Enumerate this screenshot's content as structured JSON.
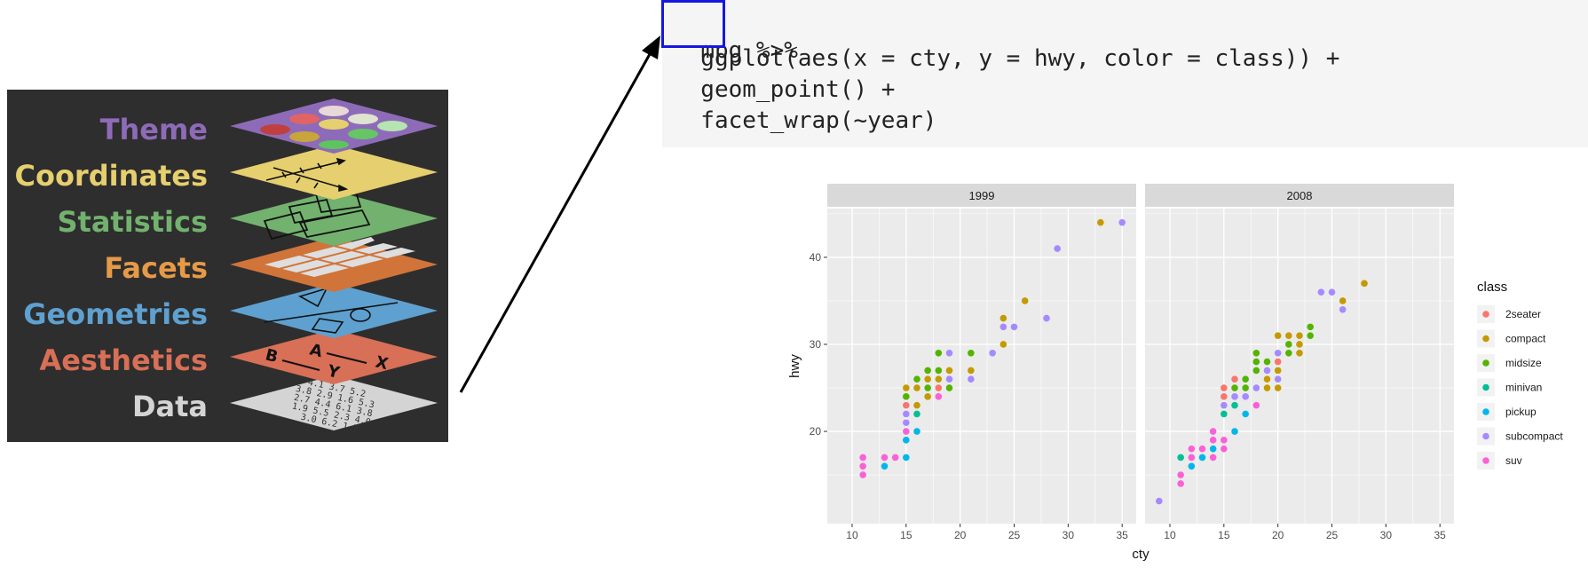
{
  "layers": [
    {
      "name": "Theme",
      "color": "#8e6bb8"
    },
    {
      "name": "Coordinates",
      "color": "#e6cf6e"
    },
    {
      "name": "Statistics",
      "color": "#72b26e"
    },
    {
      "name": "Facets",
      "color": "#e69a48"
    },
    {
      "name": "Geometries",
      "color": "#5ea1d0"
    },
    {
      "name": "Aesthetics",
      "color": "#d86f57"
    },
    {
      "name": "Data",
      "color": "#d4d4d4"
    }
  ],
  "aesthetics_letters": [
    "A",
    "X",
    "B",
    "Y"
  ],
  "data_numbers": [
    "4.1 3.7 5.2",
    "3.8 2.9 1.6 5.3",
    "2.7 4.4 6.1 3.8",
    "1.9 5.5 2.3 4.0",
    "3.0 6.2 1.7"
  ],
  "code": {
    "token_mpg": "mpg",
    "pipe": " %>%",
    "line2": "  ggplot(aes(x = cty, y = hwy, color = class)) +",
    "line3": "  geom_point() +",
    "line4": "  facet_wrap(~year)"
  },
  "colors": {
    "highlight": "#1616e0",
    "panel_bg": "#ebebeb",
    "strip_bg": "#d9d9d9",
    "grid": "#ffffff"
  },
  "chart_data": {
    "type": "scatter",
    "xlabel": "cty",
    "ylabel": "hwy",
    "xlim": [
      7.7,
      36.3
    ],
    "ylim": [
      9.4,
      45.6
    ],
    "x_ticks": [
      10,
      15,
      20,
      25,
      30,
      35
    ],
    "y_ticks": [
      20,
      30,
      40
    ],
    "facets": [
      "1999",
      "2008"
    ],
    "legend": {
      "title": "class",
      "position": "right",
      "entries": [
        {
          "name": "2seater",
          "color": "#F8766D"
        },
        {
          "name": "compact",
          "color": "#C49A00"
        },
        {
          "name": "midsize",
          "color": "#53B400"
        },
        {
          "name": "minivan",
          "color": "#00C094"
        },
        {
          "name": "pickup",
          "color": "#00B6EB"
        },
        {
          "name": "subcompact",
          "color": "#A58AFF"
        },
        {
          "name": "suv",
          "color": "#FB61D7"
        }
      ]
    },
    "points": [
      {
        "facet": 0,
        "x": 11,
        "y": 17,
        "class": "suv"
      },
      {
        "facet": 0,
        "x": 11,
        "y": 16,
        "class": "suv"
      },
      {
        "facet": 0,
        "x": 11,
        "y": 15,
        "class": "suv"
      },
      {
        "facet": 0,
        "x": 13,
        "y": 17,
        "class": "suv"
      },
      {
        "facet": 0,
        "x": 13,
        "y": 16,
        "class": "pickup"
      },
      {
        "facet": 0,
        "x": 14,
        "y": 17,
        "class": "suv"
      },
      {
        "facet": 0,
        "x": 15,
        "y": 17,
        "class": "pickup"
      },
      {
        "facet": 0,
        "x": 15,
        "y": 19,
        "class": "pickup"
      },
      {
        "facet": 0,
        "x": 15,
        "y": 20,
        "class": "suv"
      },
      {
        "facet": 0,
        "x": 15,
        "y": 21,
        "class": "subcompact"
      },
      {
        "facet": 0,
        "x": 15,
        "y": 22,
        "class": "subcompact"
      },
      {
        "facet": 0,
        "x": 15,
        "y": 23,
        "class": "2seater"
      },
      {
        "facet": 0,
        "x": 15,
        "y": 24,
        "class": "midsize"
      },
      {
        "facet": 0,
        "x": 15,
        "y": 25,
        "class": "compact"
      },
      {
        "facet": 0,
        "x": 16,
        "y": 20,
        "class": "pickup"
      },
      {
        "facet": 0,
        "x": 16,
        "y": 22,
        "class": "minivan"
      },
      {
        "facet": 0,
        "x": 16,
        "y": 23,
        "class": "compact"
      },
      {
        "facet": 0,
        "x": 16,
        "y": 25,
        "class": "compact"
      },
      {
        "facet": 0,
        "x": 16,
        "y": 26,
        "class": "midsize"
      },
      {
        "facet": 0,
        "x": 17,
        "y": 24,
        "class": "compact"
      },
      {
        "facet": 0,
        "x": 17,
        "y": 25,
        "class": "midsize"
      },
      {
        "facet": 0,
        "x": 17,
        "y": 26,
        "class": "compact"
      },
      {
        "facet": 0,
        "x": 17,
        "y": 27,
        "class": "midsize"
      },
      {
        "facet": 0,
        "x": 18,
        "y": 24,
        "class": "suv"
      },
      {
        "facet": 0,
        "x": 18,
        "y": 25,
        "class": "2seater"
      },
      {
        "facet": 0,
        "x": 18,
        "y": 26,
        "class": "compact"
      },
      {
        "facet": 0,
        "x": 18,
        "y": 27,
        "class": "midsize"
      },
      {
        "facet": 0,
        "x": 18,
        "y": 29,
        "class": "midsize"
      },
      {
        "facet": 0,
        "x": 19,
        "y": 25,
        "class": "midsize"
      },
      {
        "facet": 0,
        "x": 19,
        "y": 26,
        "class": "subcompact"
      },
      {
        "facet": 0,
        "x": 19,
        "y": 27,
        "class": "compact"
      },
      {
        "facet": 0,
        "x": 19,
        "y": 29,
        "class": "subcompact"
      },
      {
        "facet": 0,
        "x": 21,
        "y": 26,
        "class": "subcompact"
      },
      {
        "facet": 0,
        "x": 21,
        "y": 27,
        "class": "compact"
      },
      {
        "facet": 0,
        "x": 21,
        "y": 29,
        "class": "midsize"
      },
      {
        "facet": 0,
        "x": 23,
        "y": 29,
        "class": "subcompact"
      },
      {
        "facet": 0,
        "x": 24,
        "y": 30,
        "class": "compact"
      },
      {
        "facet": 0,
        "x": 24,
        "y": 32,
        "class": "subcompact"
      },
      {
        "facet": 0,
        "x": 24,
        "y": 33,
        "class": "compact"
      },
      {
        "facet": 0,
        "x": 25,
        "y": 32,
        "class": "subcompact"
      },
      {
        "facet": 0,
        "x": 26,
        "y": 35,
        "class": "compact"
      },
      {
        "facet": 0,
        "x": 28,
        "y": 33,
        "class": "subcompact"
      },
      {
        "facet": 0,
        "x": 29,
        "y": 41,
        "class": "subcompact"
      },
      {
        "facet": 0,
        "x": 33,
        "y": 44,
        "class": "compact"
      },
      {
        "facet": 0,
        "x": 35,
        "y": 44,
        "class": "subcompact"
      },
      {
        "facet": 1,
        "x": 9,
        "y": 12,
        "class": "subcompact"
      },
      {
        "facet": 1,
        "x": 11,
        "y": 14,
        "class": "suv"
      },
      {
        "facet": 1,
        "x": 11,
        "y": 15,
        "class": "suv"
      },
      {
        "facet": 1,
        "x": 11,
        "y": 17,
        "class": "minivan"
      },
      {
        "facet": 1,
        "x": 12,
        "y": 16,
        "class": "pickup"
      },
      {
        "facet": 1,
        "x": 12,
        "y": 17,
        "class": "suv"
      },
      {
        "facet": 1,
        "x": 12,
        "y": 18,
        "class": "suv"
      },
      {
        "facet": 1,
        "x": 13,
        "y": 17,
        "class": "pickup"
      },
      {
        "facet": 1,
        "x": 13,
        "y": 18,
        "class": "suv"
      },
      {
        "facet": 1,
        "x": 14,
        "y": 17,
        "class": "suv"
      },
      {
        "facet": 1,
        "x": 14,
        "y": 18,
        "class": "pickup"
      },
      {
        "facet": 1,
        "x": 14,
        "y": 19,
        "class": "suv"
      },
      {
        "facet": 1,
        "x": 14,
        "y": 20,
        "class": "suv"
      },
      {
        "facet": 1,
        "x": 15,
        "y": 18,
        "class": "suv"
      },
      {
        "facet": 1,
        "x": 15,
        "y": 19,
        "class": "suv"
      },
      {
        "facet": 1,
        "x": 15,
        "y": 22,
        "class": "minivan"
      },
      {
        "facet": 1,
        "x": 15,
        "y": 23,
        "class": "subcompact"
      },
      {
        "facet": 1,
        "x": 15,
        "y": 24,
        "class": "2seater"
      },
      {
        "facet": 1,
        "x": 15,
        "y": 25,
        "class": "2seater"
      },
      {
        "facet": 1,
        "x": 16,
        "y": 20,
        "class": "pickup"
      },
      {
        "facet": 1,
        "x": 16,
        "y": 23,
        "class": "minivan"
      },
      {
        "facet": 1,
        "x": 16,
        "y": 24,
        "class": "subcompact"
      },
      {
        "facet": 1,
        "x": 16,
        "y": 25,
        "class": "midsize"
      },
      {
        "facet": 1,
        "x": 16,
        "y": 26,
        "class": "2seater"
      },
      {
        "facet": 1,
        "x": 17,
        "y": 22,
        "class": "pickup"
      },
      {
        "facet": 1,
        "x": 17,
        "y": 24,
        "class": "subcompact"
      },
      {
        "facet": 1,
        "x": 17,
        "y": 25,
        "class": "midsize"
      },
      {
        "facet": 1,
        "x": 17,
        "y": 26,
        "class": "midsize"
      },
      {
        "facet": 1,
        "x": 18,
        "y": 23,
        "class": "suv"
      },
      {
        "facet": 1,
        "x": 18,
        "y": 25,
        "class": "subcompact"
      },
      {
        "facet": 1,
        "x": 18,
        "y": 27,
        "class": "midsize"
      },
      {
        "facet": 1,
        "x": 18,
        "y": 28,
        "class": "midsize"
      },
      {
        "facet": 1,
        "x": 18,
        "y": 29,
        "class": "midsize"
      },
      {
        "facet": 1,
        "x": 19,
        "y": 25,
        "class": "compact"
      },
      {
        "facet": 1,
        "x": 19,
        "y": 26,
        "class": "compact"
      },
      {
        "facet": 1,
        "x": 19,
        "y": 27,
        "class": "subcompact"
      },
      {
        "facet": 1,
        "x": 19,
        "y": 28,
        "class": "midsize"
      },
      {
        "facet": 1,
        "x": 20,
        "y": 25,
        "class": "compact"
      },
      {
        "facet": 1,
        "x": 20,
        "y": 26,
        "class": "subcompact"
      },
      {
        "facet": 1,
        "x": 20,
        "y": 27,
        "class": "compact"
      },
      {
        "facet": 1,
        "x": 20,
        "y": 28,
        "class": "2seater"
      },
      {
        "facet": 1,
        "x": 20,
        "y": 29,
        "class": "subcompact"
      },
      {
        "facet": 1,
        "x": 20,
        "y": 31,
        "class": "compact"
      },
      {
        "facet": 1,
        "x": 21,
        "y": 29,
        "class": "midsize"
      },
      {
        "facet": 1,
        "x": 21,
        "y": 30,
        "class": "midsize"
      },
      {
        "facet": 1,
        "x": 21,
        "y": 31,
        "class": "compact"
      },
      {
        "facet": 1,
        "x": 22,
        "y": 29,
        "class": "compact"
      },
      {
        "facet": 1,
        "x": 22,
        "y": 30,
        "class": "compact"
      },
      {
        "facet": 1,
        "x": 22,
        "y": 31,
        "class": "compact"
      },
      {
        "facet": 1,
        "x": 23,
        "y": 31,
        "class": "midsize"
      },
      {
        "facet": 1,
        "x": 23,
        "y": 32,
        "class": "midsize"
      },
      {
        "facet": 1,
        "x": 24,
        "y": 36,
        "class": "subcompact"
      },
      {
        "facet": 1,
        "x": 25,
        "y": 36,
        "class": "subcompact"
      },
      {
        "facet": 1,
        "x": 26,
        "y": 34,
        "class": "subcompact"
      },
      {
        "facet": 1,
        "x": 26,
        "y": 35,
        "class": "compact"
      },
      {
        "facet": 1,
        "x": 28,
        "y": 37,
        "class": "compact"
      }
    ]
  }
}
